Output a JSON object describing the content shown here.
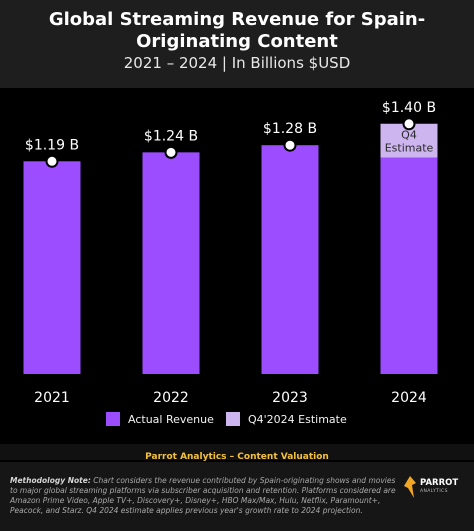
{
  "header": {
    "title": "Global Streaming Revenue for Spain-Originating Content",
    "subtitle": "2021 – 2024 | In Billions $USD"
  },
  "chart_data": {
    "type": "bar",
    "categories": [
      "2021",
      "2022",
      "2023",
      "2024"
    ],
    "series": [
      {
        "name": "Actual Revenue",
        "values": [
          1.19,
          1.24,
          1.28,
          1.21
        ],
        "color": "#9b4dff"
      },
      {
        "name": "Q4'2024 Estimate",
        "values": [
          0,
          0,
          0,
          0.19
        ],
        "color": "#cdb5ef"
      }
    ],
    "data_labels": [
      "$1.19 B",
      "$1.24 B",
      "$1.28 B",
      "$1.40 B"
    ],
    "totals": [
      1.19,
      1.24,
      1.28,
      1.4
    ],
    "segment_labels": [
      "",
      "",
      "",
      "Q4\nEstimate"
    ],
    "ylim": [
      0,
      1.6
    ],
    "grid": false,
    "legend_position": "bottom"
  },
  "source": "Parrot Analytics – Content Valuation",
  "methodology": {
    "label": "Methodology Note:",
    "text": " Chart considers the revenue contributed by Spain-originating shows and movies to major global streaming platforms via subscriber acquisition and retention.  Platforms considered are Amazon Prime Video, Apple TV+, Discovery+, Disney+, HBO Max/Max, Hulu, Netflix, Paramount+, Peacock, and Starz.  Q4 2024 estimate applies previous year's growth rate to 2024 projection."
  },
  "logo": {
    "name": "PARROT",
    "tagline": "ANALYTICS",
    "icon": "parrot-logo-icon",
    "color": "#f3a623"
  }
}
